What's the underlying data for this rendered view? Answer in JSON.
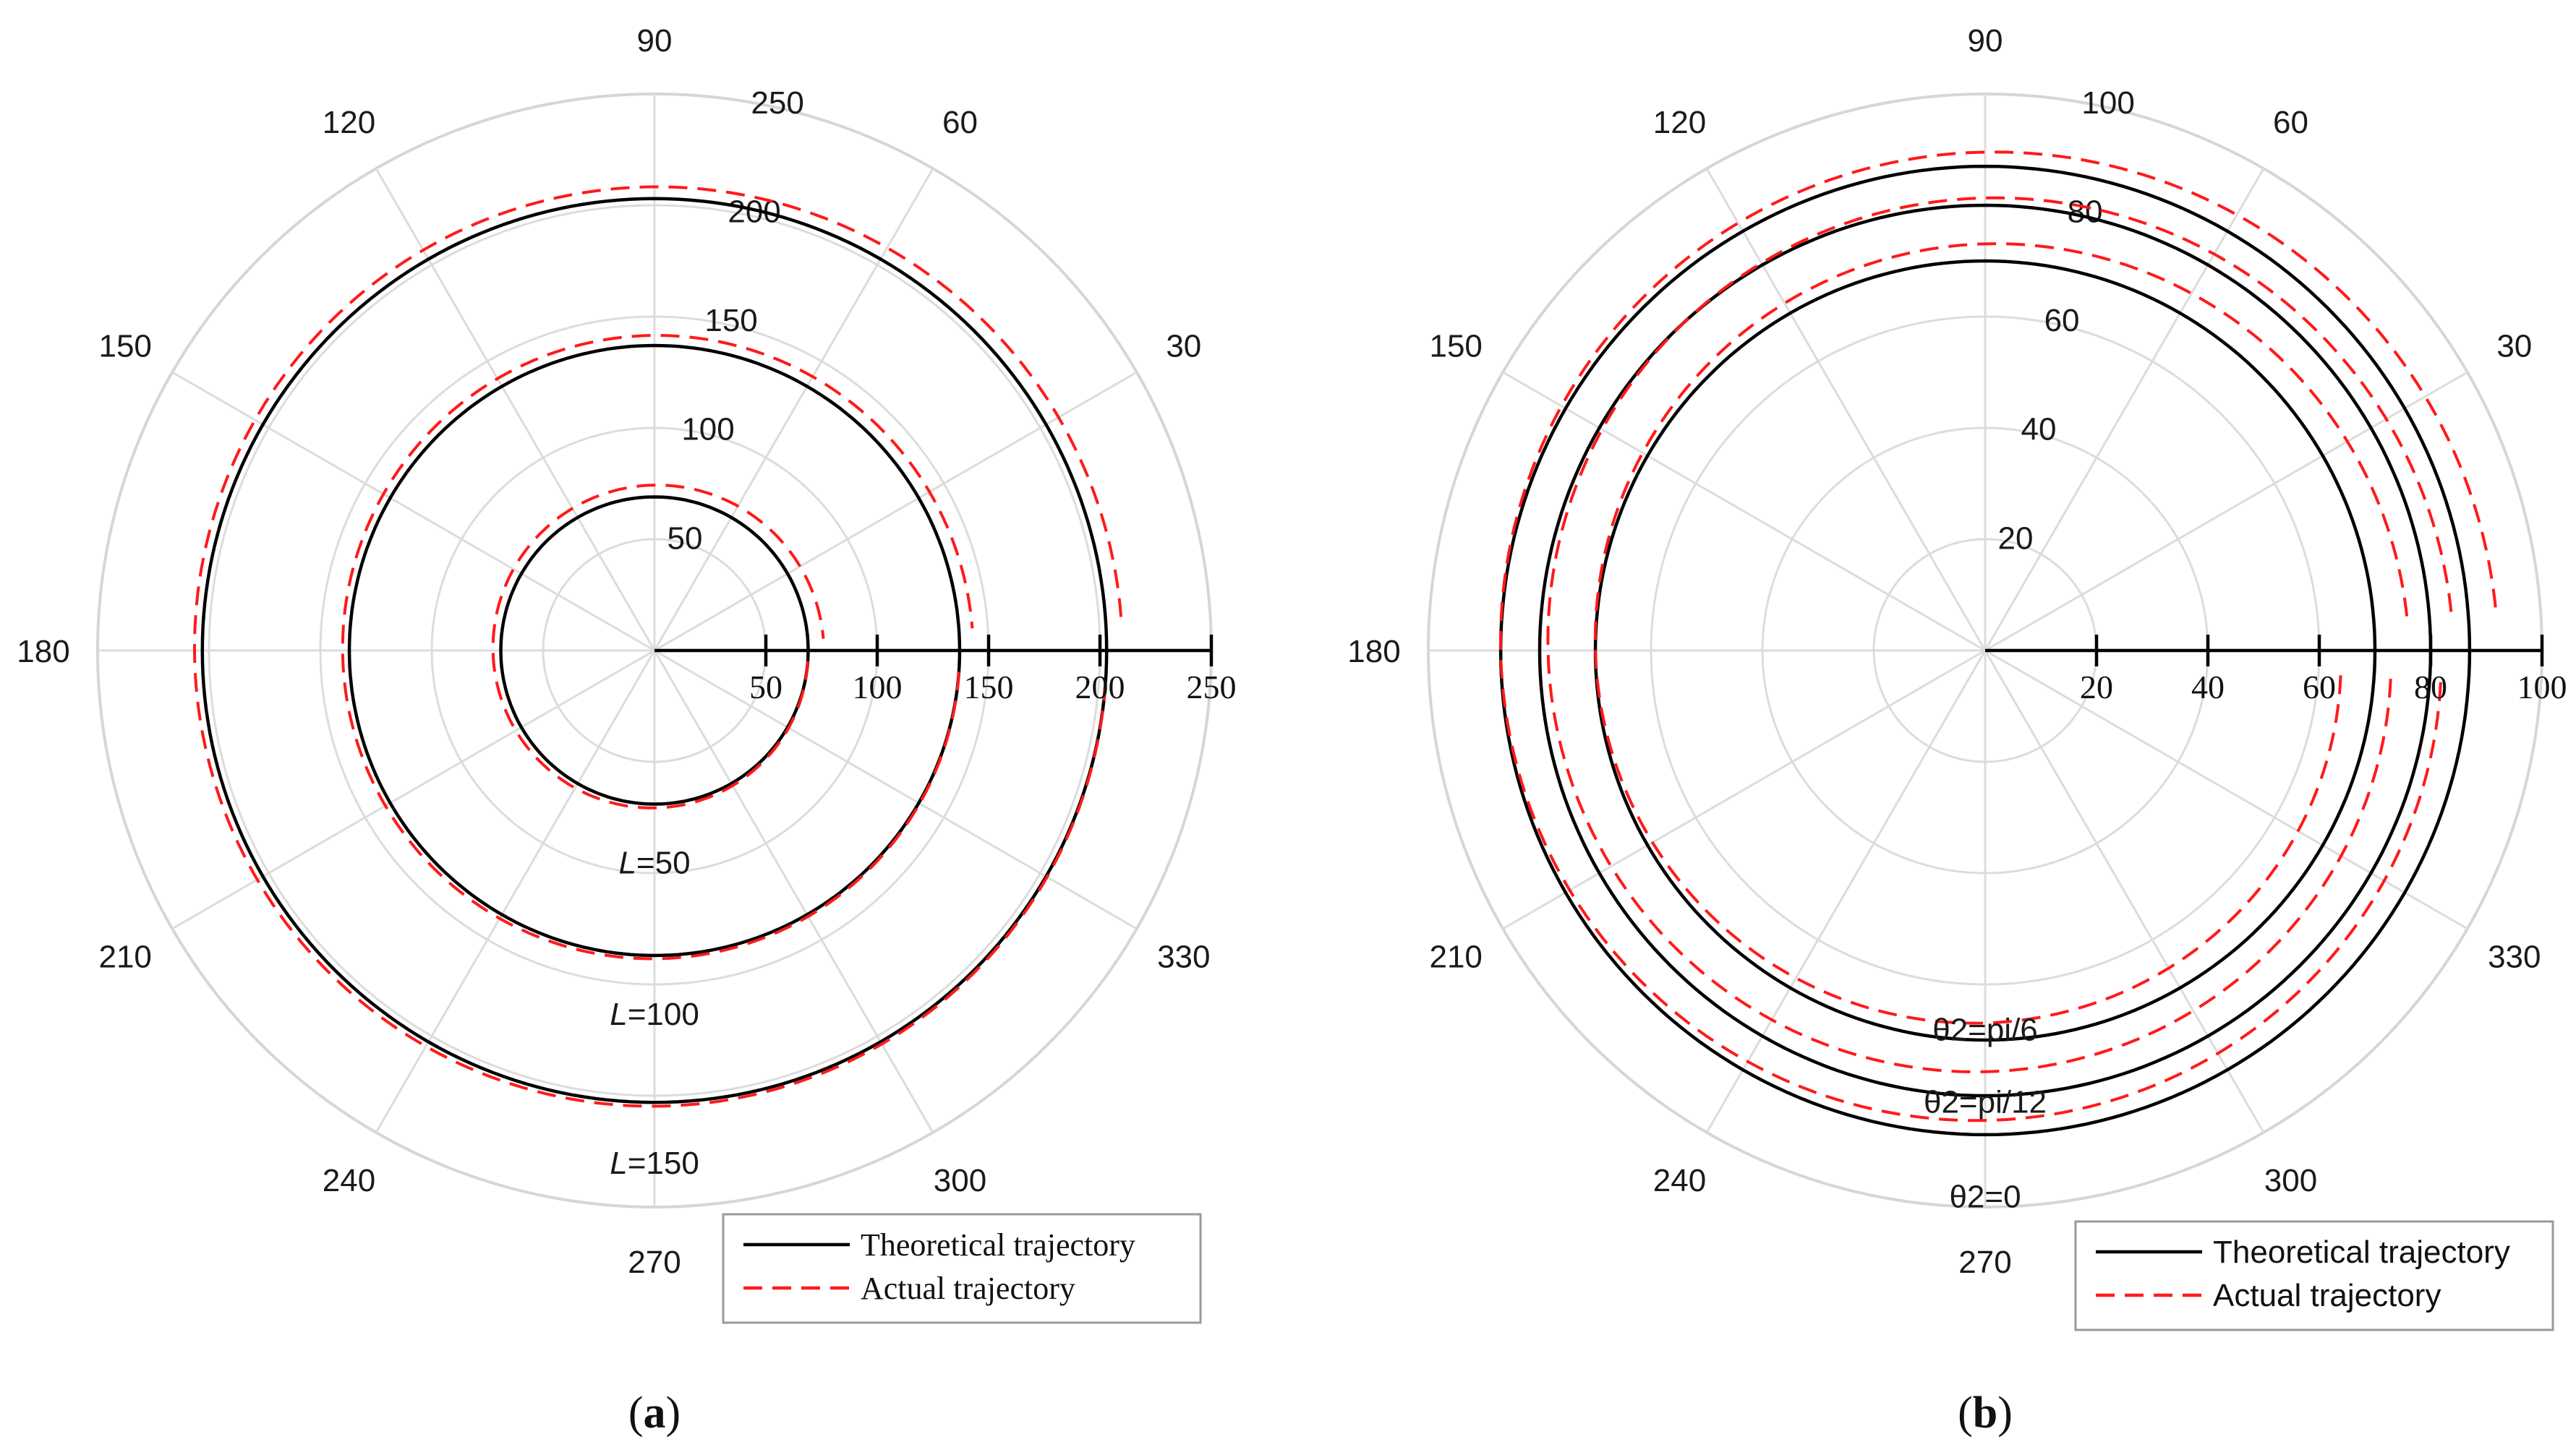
{
  "chart_data": [
    {
      "id": "a",
      "type": "polar-line",
      "panel_label": "(a)",
      "angle_ticks": [
        90,
        60,
        30,
        0,
        330,
        300,
        270,
        240,
        210,
        180,
        150,
        120
      ],
      "angle_tick_labels": [
        "90",
        "60",
        "30",
        "330",
        "300",
        "270",
        "240",
        "210",
        "180",
        "150",
        "120"
      ],
      "radial_max": 250,
      "radial_ticks": [
        50,
        100,
        150,
        200,
        250
      ],
      "radial_tick_labels": [
        "50",
        "100",
        "150",
        "200",
        "250"
      ],
      "axis_ticks": [
        50,
        100,
        150,
        200,
        250
      ],
      "axis_tick_labels": [
        "50",
        "100",
        "150",
        "200",
        "250"
      ],
      "series": [
        {
          "name": "Theoretical trajectory",
          "style": "solid",
          "color": "#000000",
          "curves": [
            {
              "r0": 69,
              "r1": 69
            },
            {
              "r0": 137,
              "r1": 137
            },
            {
              "r0": 203,
              "r1": 203
            }
          ]
        },
        {
          "name": "Actual trajectory",
          "style": "dashed",
          "color": "#ff1a1a",
          "curves": [
            {
              "r0": 69,
              "r1": 76
            },
            {
              "r0": 137,
              "r1": 143
            },
            {
              "r0": 203,
              "r1": 210
            }
          ]
        }
      ],
      "annotations": [
        {
          "italic": "L",
          "rest": "=50",
          "r": 80,
          "angle": 270
        },
        {
          "italic": "L",
          "rest": "=100",
          "r": 148,
          "angle": 270
        },
        {
          "italic": "L",
          "rest": "=150",
          "r": 215,
          "angle": 270
        }
      ],
      "legend": {
        "placement": "bottom-right",
        "entries": [
          "Theoretical trajectory",
          "Actual trajectory"
        ]
      }
    },
    {
      "id": "b",
      "type": "polar-line",
      "panel_label": "(b)",
      "angle_ticks": [
        90,
        60,
        30,
        0,
        330,
        300,
        270,
        240,
        210,
        180,
        150,
        120
      ],
      "angle_tick_labels": [
        "90",
        "60",
        "30",
        "330",
        "300",
        "270",
        "240",
        "210",
        "180",
        "150",
        "120"
      ],
      "radial_max": 100,
      "radial_ticks": [
        20,
        40,
        60,
        80,
        100
      ],
      "radial_tick_labels": [
        "20",
        "40",
        "60",
        "80",
        "100"
      ],
      "axis_ticks": [
        20,
        40,
        60,
        80,
        100
      ],
      "axis_tick_labels": [
        "20",
        "40",
        "60",
        "80",
        "100"
      ],
      "series": [
        {
          "name": "Theoretical trajectory",
          "style": "solid",
          "color": "#000000",
          "curves": [
            {
              "r0": 70,
              "r1": 70
            },
            {
              "r0": 80,
              "r1": 80
            },
            {
              "r0": 87,
              "r1": 87
            }
          ]
        },
        {
          "name": "Actual trajectory",
          "style": "dashed",
          "color": "#ff1a1a",
          "curves": [
            {
              "r0": 64,
              "r1": 76
            },
            {
              "r0": 73,
              "r1": 84
            },
            {
              "r0": 82,
              "r1": 92
            }
          ]
        }
      ],
      "annotations": [
        {
          "italic": "",
          "rest": "θ2=pi/6",
          "r": 62,
          "angle": 270
        },
        {
          "italic": "",
          "rest": "θ2=pi/12",
          "r": 75,
          "angle": 270
        },
        {
          "italic": "",
          "rest": "θ2=0",
          "r": 92,
          "angle": 270
        }
      ],
      "legend": {
        "placement": "bottom-right",
        "entries": [
          "Theoretical trajectory",
          "Actual trajectory"
        ]
      }
    }
  ]
}
